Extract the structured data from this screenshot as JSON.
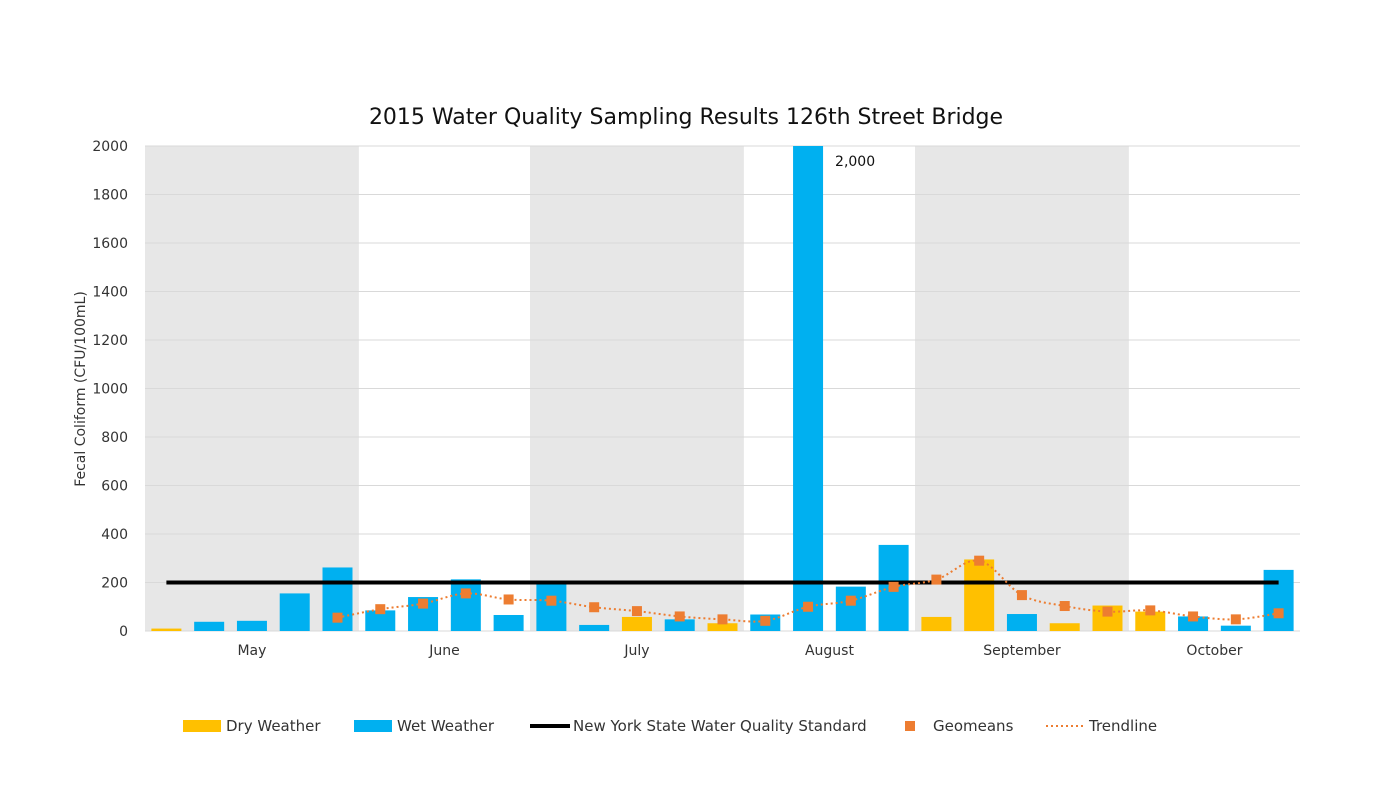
{
  "chart_data": {
    "type": "bar",
    "title": "2015 Water Quality Sampling Results 126th Street Bridge",
    "xlabel": "",
    "ylabel": "Fecal Coliform (CFU/100mL)",
    "ylim": [
      0,
      2000
    ],
    "yticks": [
      "0",
      "200",
      "400",
      "600",
      "800",
      "1000",
      "1200",
      "1400",
      "1600",
      "1800",
      "2000"
    ],
    "grid": true,
    "legend_position": "bottom",
    "months": [
      "May",
      "June",
      "July",
      "August",
      "September",
      "October"
    ],
    "samples": [
      {
        "weather": "dry",
        "value": 10
      },
      {
        "weather": "wet",
        "value": 38
      },
      {
        "weather": "wet",
        "value": 42
      },
      {
        "weather": "wet",
        "value": 155
      },
      {
        "weather": "wet",
        "value": 262
      },
      {
        "weather": "wet",
        "value": 85
      },
      {
        "weather": "wet",
        "value": 140
      },
      {
        "weather": "wet",
        "value": 213
      },
      {
        "weather": "wet",
        "value": 66
      },
      {
        "weather": "wet",
        "value": 195
      },
      {
        "weather": "wet",
        "value": 25
      },
      {
        "weather": "dry",
        "value": 58
      },
      {
        "weather": "wet",
        "value": 48
      },
      {
        "weather": "dry",
        "value": 32
      },
      {
        "weather": "wet",
        "value": 68
      },
      {
        "weather": "wet",
        "value": 2000,
        "label": "2,000"
      },
      {
        "weather": "wet",
        "value": 183
      },
      {
        "weather": "wet",
        "value": 355
      },
      {
        "weather": "dry",
        "value": 58
      },
      {
        "weather": "dry",
        "value": 295
      },
      {
        "weather": "wet",
        "value": 70
      },
      {
        "weather": "dry",
        "value": 32
      },
      {
        "weather": "dry",
        "value": 105
      },
      {
        "weather": "dry",
        "value": 80
      },
      {
        "weather": "wet",
        "value": 60
      },
      {
        "weather": "wet",
        "value": 22
      },
      {
        "weather": "wet",
        "value": 252
      }
    ],
    "geomeans": [
      {
        "sample": 4,
        "value": 55
      },
      {
        "sample": 5,
        "value": 90
      },
      {
        "sample": 6,
        "value": 113
      },
      {
        "sample": 7,
        "value": 155
      },
      {
        "sample": 8,
        "value": 130
      },
      {
        "sample": 9,
        "value": 125
      },
      {
        "sample": 10,
        "value": 98
      },
      {
        "sample": 11,
        "value": 82
      },
      {
        "sample": 12,
        "value": 60
      },
      {
        "sample": 13,
        "value": 48
      },
      {
        "sample": 14,
        "value": 42
      },
      {
        "sample": 15,
        "value": 100
      },
      {
        "sample": 16,
        "value": 125
      },
      {
        "sample": 17,
        "value": 182
      },
      {
        "sample": 18,
        "value": 212
      },
      {
        "sample": 19,
        "value": 290
      },
      {
        "sample": 20,
        "value": 148
      },
      {
        "sample": 21,
        "value": 103
      },
      {
        "sample": 22,
        "value": 80
      },
      {
        "sample": 23,
        "value": 85
      },
      {
        "sample": 24,
        "value": 60
      },
      {
        "sample": 25,
        "value": 48
      },
      {
        "sample": 26,
        "value": 73
      }
    ],
    "standard": 200,
    "legend": {
      "dry": "Dry Weather",
      "wet": "Wet Weather",
      "standard": "New York State Water Quality Standard",
      "geomeans": "Geomeans",
      "trendline": "Trendline"
    },
    "colors": {
      "dry": "#FFC000",
      "wet": "#00B0F0",
      "standard": "#000000",
      "geomeans": "#ED7D31",
      "trendline": "#ED7D31",
      "band": "#E7E7E7",
      "grid": "#D9D9D9"
    }
  }
}
